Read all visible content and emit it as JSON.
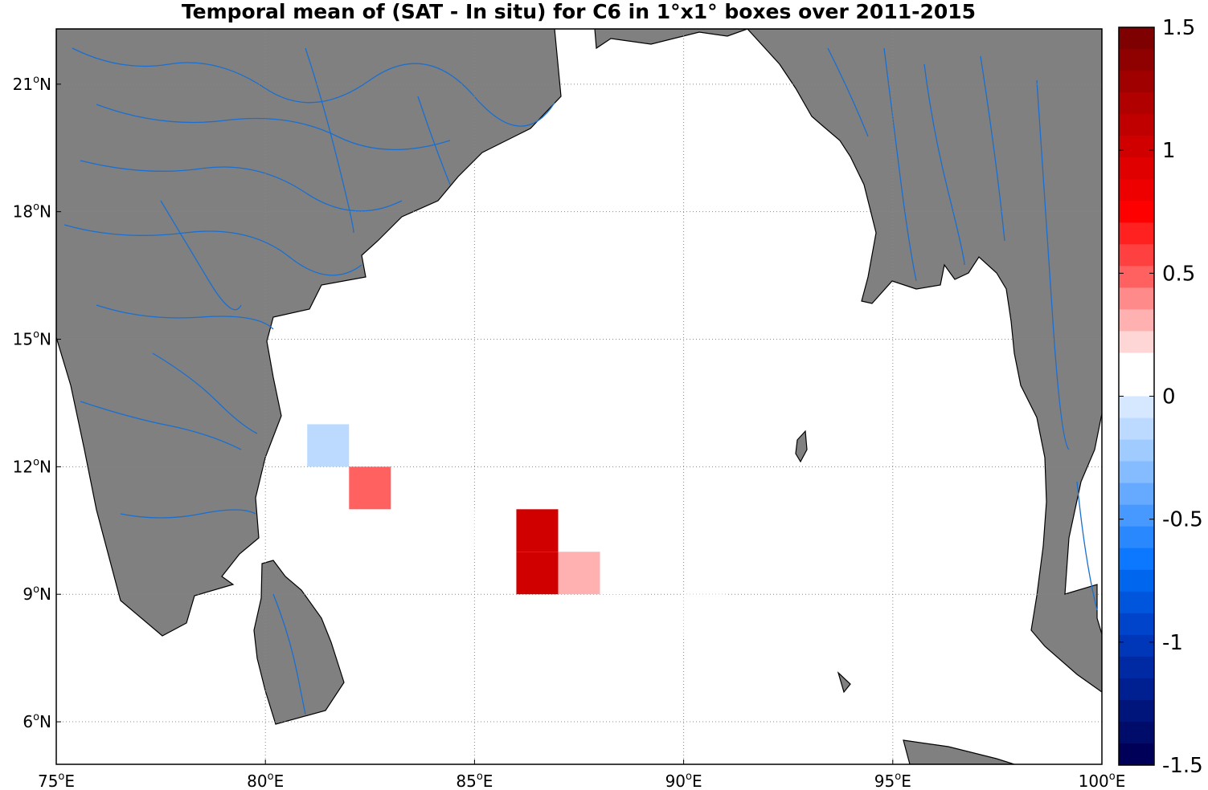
{
  "chart_data": {
    "type": "heatmap",
    "title": "Temporal mean of (SAT - In situ) for C6 in 1°x1° boxes over 2011-2015",
    "xlim": [
      75,
      100
    ],
    "ylim": [
      5,
      22.3
    ],
    "x_ticks": [
      {
        "value": 75,
        "deg": "75",
        "hemi": "E"
      },
      {
        "value": 80,
        "deg": "80",
        "hemi": "E"
      },
      {
        "value": 85,
        "deg": "85",
        "hemi": "E"
      },
      {
        "value": 90,
        "deg": "90",
        "hemi": "E"
      },
      {
        "value": 95,
        "deg": "95",
        "hemi": "E"
      },
      {
        "value": 100,
        "deg": "100",
        "hemi": "E"
      }
    ],
    "y_ticks": [
      {
        "value": 6,
        "deg": "6",
        "hemi": "N"
      },
      {
        "value": 9,
        "deg": "9",
        "hemi": "N"
      },
      {
        "value": 12,
        "deg": "12",
        "hemi": "N"
      },
      {
        "value": 15,
        "deg": "15",
        "hemi": "N"
      },
      {
        "value": 18,
        "deg": "18",
        "hemi": "N"
      },
      {
        "value": 21,
        "deg": "21",
        "hemi": "N"
      }
    ],
    "grid": true,
    "cells": [
      {
        "lon": 81,
        "lat": 12,
        "value": -0.1
      },
      {
        "lon": 82,
        "lat": 11,
        "value": 0.45
      },
      {
        "lon": 81,
        "lat": 10,
        "value": 0.1
      },
      {
        "lon": 85,
        "lat": 10,
        "value": 0.1
      },
      {
        "lon": 86,
        "lat": 10,
        "value": 1.0
      },
      {
        "lon": 86,
        "lat": 9,
        "value": 1.0
      },
      {
        "lon": 87,
        "lat": 9,
        "value": 0.3
      },
      {
        "lon": 88,
        "lat": 9,
        "value": 0.1
      },
      {
        "lon": 90,
        "lat": 8,
        "value": 0.1
      }
    ],
    "colorbar": {
      "min": -1.5,
      "max": 1.5,
      "ticks": [
        {
          "value": 1.5,
          "label": "1.5"
        },
        {
          "value": 1,
          "label": "1"
        },
        {
          "value": 0.5,
          "label": "0.5"
        },
        {
          "value": 0,
          "label": "0"
        },
        {
          "value": -0.5,
          "label": "-0.5"
        },
        {
          "value": -1,
          "label": "-1"
        },
        {
          "value": -1.5,
          "label": "-1.5"
        }
      ],
      "colors_top_to_bottom": [
        "#7f0000",
        "#8f0000",
        "#a00000",
        "#b00000",
        "#c00000",
        "#d00000",
        "#e00000",
        "#ee0000",
        "#ff0000",
        "#ff2020",
        "#ff4040",
        "#ff6060",
        "#ff8a8a",
        "#ffb0b0",
        "#ffd6d6",
        "#ffffff",
        "#ffffff",
        "#d6e8ff",
        "#bcdaff",
        "#a0cbff",
        "#84bcff",
        "#66aaff",
        "#4899ff",
        "#2a88ff",
        "#0c77ff",
        "#0066ee",
        "#0055dd",
        "#0044cc",
        "#0036b8",
        "#002aa4",
        "#001f90",
        "#00157c",
        "#000c6a",
        "#000058"
      ]
    }
  },
  "colors": {
    "land": "#808080",
    "coast": "#000000",
    "river": "#1a6fd0",
    "grid": "#888888"
  }
}
